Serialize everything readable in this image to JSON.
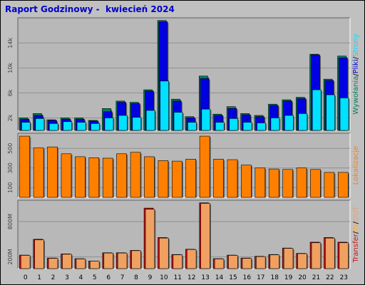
{
  "title": "Raport Godzinowy -  kwiecień 2024",
  "colors": {
    "panel_bg": "#c0c0c0",
    "plot_bg": "#b8b8b8",
    "grid": "#909090",
    "hits": "#00805c",
    "files": "#0000e0",
    "pages": "#00e0ff",
    "sites": "#ff8000",
    "kbytes": "#d01010",
    "kbytes_in": "#ffb040",
    "kbytes_out": "#f0a060"
  },
  "chart_data": [
    {
      "type": "bar",
      "id": "requests",
      "categories": [
        "0",
        "1",
        "2",
        "3",
        "4",
        "5",
        "6",
        "7",
        "8",
        "9",
        "10",
        "11",
        "12",
        "13",
        "14",
        "15",
        "16",
        "17",
        "18",
        "19",
        "20",
        "21",
        "22",
        "23"
      ],
      "ylim": [
        0,
        17800
      ],
      "y_ticks": [
        {
          "value": 2000,
          "label": "2k"
        },
        {
          "value": 6000,
          "label": "6k"
        },
        {
          "value": 10000,
          "label": "10k"
        },
        {
          "value": 14000,
          "label": "14k"
        }
      ],
      "legend": [
        {
          "text": "Wywołania",
          "color": "#00805c"
        },
        {
          "text": "/",
          "color": "#000000"
        },
        {
          "text": "Pliki",
          "color": "#0000e0"
        },
        {
          "text": "/",
          "color": "#000000"
        },
        {
          "text": "Strony",
          "color": "#00e0ff"
        }
      ],
      "series": [
        {
          "key": "hits",
          "values": [
            2000,
            2700,
            1700,
            2000,
            2000,
            1600,
            3500,
            4700,
            4500,
            6500,
            17600,
            5000,
            2200,
            8700,
            2600,
            3800,
            2700,
            2400,
            4200,
            4900,
            5300,
            12200,
            8200,
            11900
          ]
        },
        {
          "key": "files",
          "values": [
            1800,
            2400,
            1600,
            1800,
            1800,
            1500,
            3000,
            4500,
            4300,
            6300,
            17400,
            4700,
            2000,
            8300,
            2400,
            3500,
            2500,
            2200,
            4000,
            4700,
            5100,
            12100,
            8000,
            11600
          ]
        },
        {
          "key": "pages",
          "values": [
            1300,
            1900,
            1100,
            1400,
            1300,
            1100,
            2000,
            2400,
            2100,
            3200,
            7900,
            2900,
            1300,
            3400,
            1300,
            1900,
            1300,
            1200,
            2000,
            2400,
            2700,
            6500,
            5700,
            5200
          ]
        }
      ]
    },
    {
      "type": "bar",
      "id": "sites",
      "categories": [
        "0",
        "1",
        "2",
        "3",
        "4",
        "5",
        "6",
        "7",
        "8",
        "9",
        "10",
        "11",
        "12",
        "13",
        "14",
        "15",
        "16",
        "17",
        "18",
        "19",
        "20",
        "21",
        "22",
        "23"
      ],
      "ylim": [
        0,
        640
      ],
      "y_ticks": [
        {
          "value": 100,
          "label": "100"
        },
        {
          "value": 300,
          "label": "300"
        },
        {
          "value": 500,
          "label": "500"
        }
      ],
      "legend": [
        {
          "text": "Lokalizacje",
          "color": "#ff8000"
        }
      ],
      "series": [
        {
          "key": "sites",
          "values": [
            625,
            505,
            515,
            445,
            415,
            405,
            400,
            445,
            460,
            415,
            375,
            370,
            390,
            625,
            390,
            385,
            330,
            300,
            290,
            285,
            300,
            285,
            255,
            255
          ]
        }
      ]
    },
    {
      "type": "bar",
      "id": "transfer",
      "categories": [
        "0",
        "1",
        "2",
        "3",
        "4",
        "5",
        "6",
        "7",
        "8",
        "9",
        "10",
        "11",
        "12",
        "13",
        "14",
        "15",
        "16",
        "17",
        "18",
        "19",
        "20",
        "21",
        "22",
        "23"
      ],
      "ylim": [
        0,
        1140
      ],
      "y_ticks": [
        {
          "value": 200,
          "label": "200M"
        },
        {
          "value": 800,
          "label": "800M"
        }
      ],
      "legend": [
        {
          "text": "Transfer",
          "color": "#d01010"
        },
        {
          "text": "/",
          "color": "#000000"
        },
        {
          "text": "IN",
          "color": "#ffb040"
        },
        {
          "text": "/",
          "color": "#000000"
        },
        {
          "text": "OUT",
          "color": "#f0a060"
        }
      ],
      "series": [
        {
          "key": "kbytes",
          "values": [
            230,
            500,
            180,
            250,
            170,
            130,
            270,
            270,
            310,
            1030,
            530,
            240,
            330,
            1120,
            170,
            230,
            180,
            210,
            240,
            350,
            260,
            450,
            530,
            450
          ]
        },
        {
          "key": "kbytes_out",
          "values": [
            225,
            490,
            175,
            245,
            165,
            128,
            265,
            265,
            305,
            1010,
            520,
            235,
            325,
            1110,
            165,
            225,
            175,
            205,
            235,
            345,
            255,
            440,
            520,
            440
          ]
        }
      ]
    }
  ]
}
